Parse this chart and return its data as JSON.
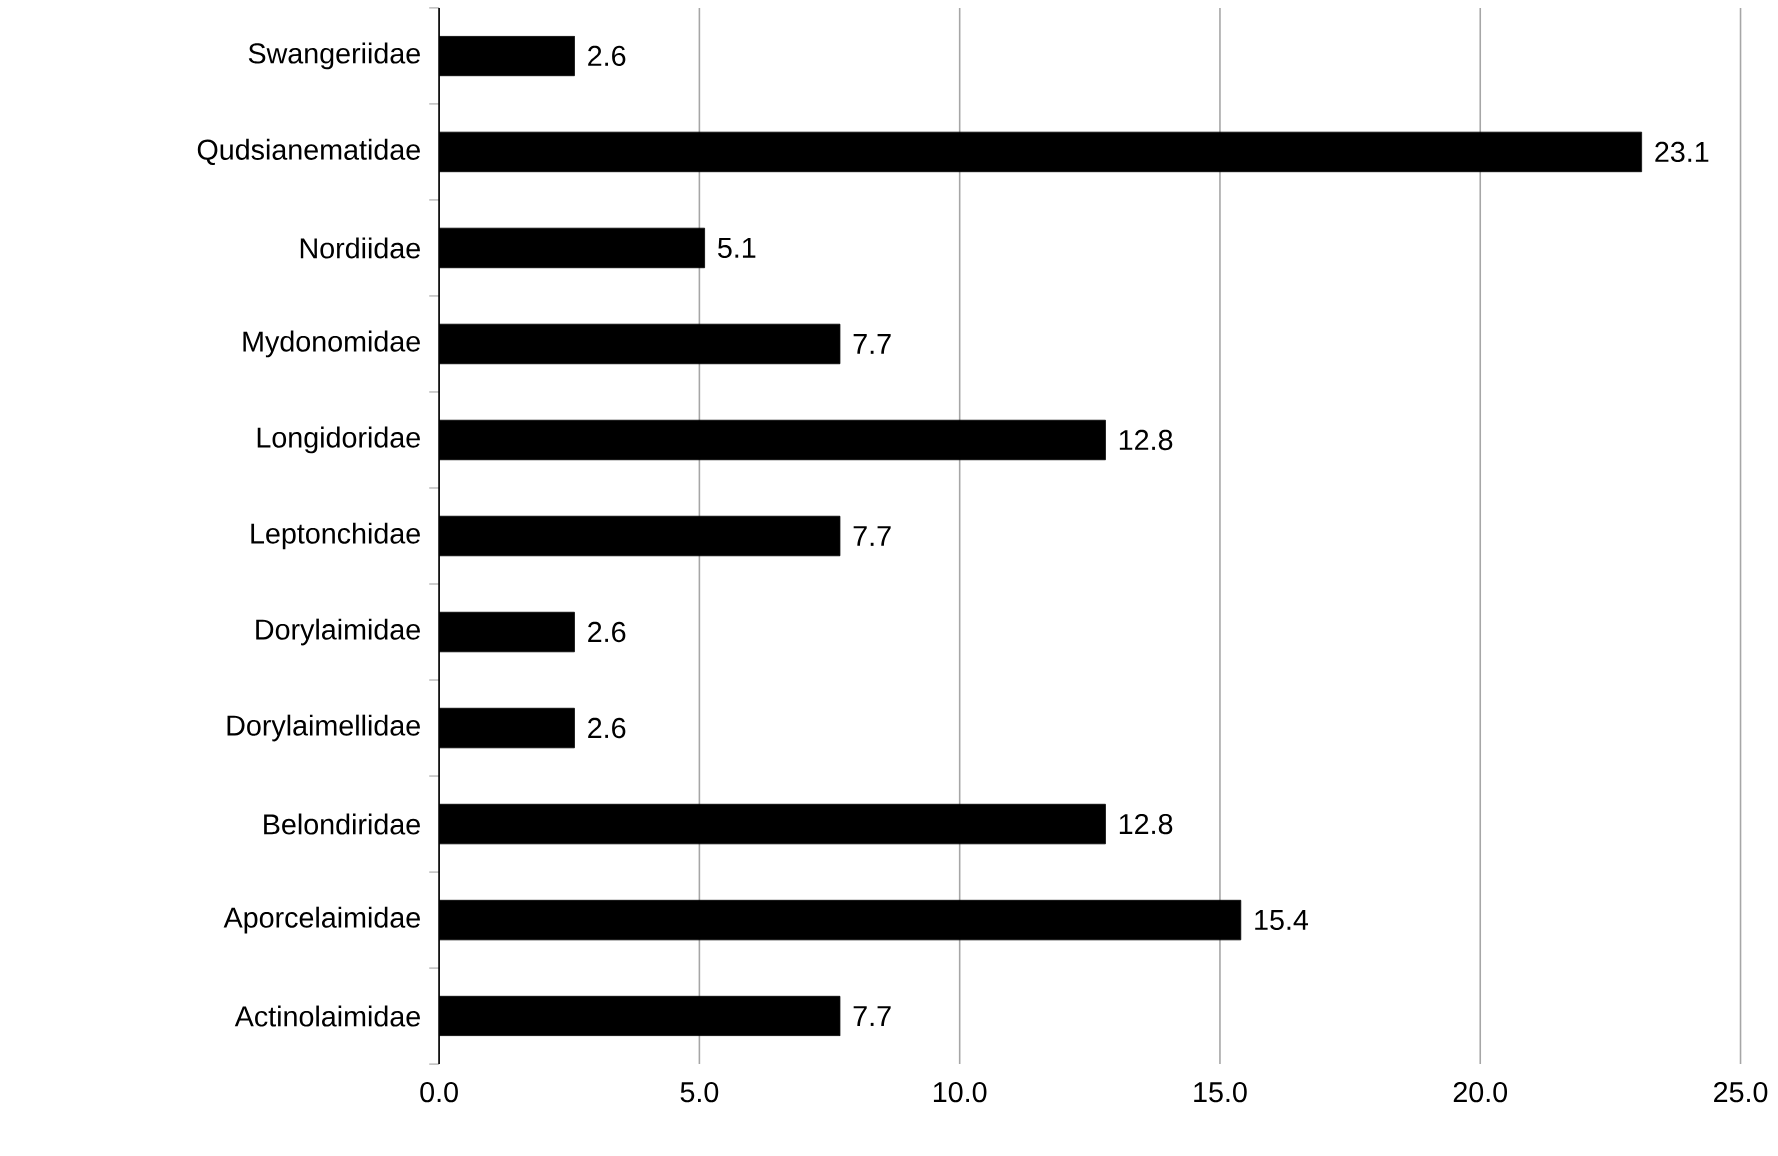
{
  "chart_data": {
    "type": "bar",
    "orientation": "horizontal",
    "categories": [
      "Swangeriidae",
      "Qudsianematidae",
      "Nordiidae",
      "Mydonomidae",
      "Longidoridae",
      "Leptonchidae",
      "Dorylaimidae",
      "Dorylaimellidae",
      "Belondiridae",
      "Aporcelaimidae",
      "Actinolaimidae"
    ],
    "values": [
      2.6,
      23.1,
      5.1,
      7.7,
      12.8,
      7.7,
      2.6,
      2.6,
      12.8,
      15.4,
      7.7
    ],
    "color": "#000000",
    "xlim": [
      0,
      25
    ],
    "xticks": [
      {
        "value": 0,
        "label": "0.0"
      },
      {
        "value": 5,
        "label": "5.0"
      },
      {
        "value": 10,
        "label": "10.0"
      },
      {
        "value": 15,
        "label": "15.0"
      },
      {
        "value": 20,
        "label": "20.0"
      },
      {
        "value": 25,
        "label": "25.0"
      }
    ],
    "grid": "x",
    "data_labels": true
  }
}
